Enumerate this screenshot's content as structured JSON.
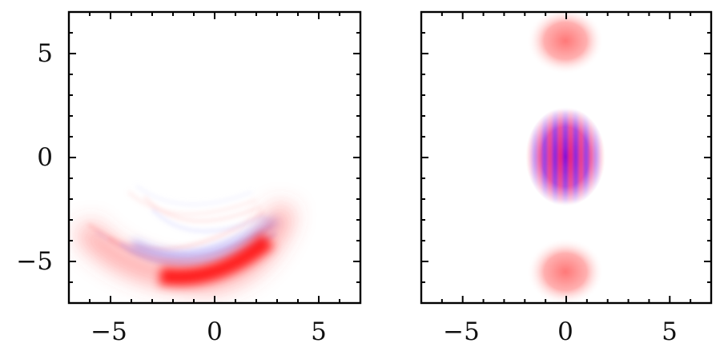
{
  "chart_data": [
    {
      "type": "heatmap",
      "title": "",
      "xlabel": "",
      "ylabel": "",
      "xlim": [
        -7,
        7
      ],
      "ylim": [
        -7,
        7
      ],
      "xticks": [
        -5,
        0,
        5
      ],
      "yticks": [
        -5,
        0,
        5
      ],
      "xtick_labels": [
        "−5",
        "0",
        "5"
      ],
      "ytick_labels": [
        "−5",
        "0",
        "5"
      ],
      "colormap": "bwr",
      "colors": {
        "positive": "#ff0000",
        "negative": "#0000ff",
        "zero": "#ffffff"
      },
      "grid": false,
      "features": [
        {
          "kind": "crescent-main-lobe",
          "center": [
            0,
            -5.5
          ],
          "sign": "positive",
          "peak": 0.9
        },
        {
          "kind": "interference-arcs",
          "center": [
            -1.5,
            -2.5
          ],
          "sign": "alternating",
          "peak": 0.35
        }
      ]
    },
    {
      "type": "heatmap",
      "title": "",
      "xlabel": "",
      "ylabel": "",
      "xlim": [
        -7,
        7
      ],
      "ylim": [
        -7,
        7
      ],
      "xticks": [
        -5,
        0,
        5
      ],
      "yticks": [
        -5,
        0,
        5
      ],
      "xtick_labels": [
        "−5",
        "0",
        "5"
      ],
      "ytick_labels": [],
      "colormap": "bwr",
      "colors": {
        "positive": "#ff0000",
        "negative": "#0000ff",
        "zero": "#ffffff"
      },
      "grid": false,
      "features": [
        {
          "kind": "gaussian",
          "center": [
            0,
            5.6
          ],
          "sign": "positive",
          "peak": 0.5
        },
        {
          "kind": "gaussian",
          "center": [
            0,
            -5.6
          ],
          "sign": "positive",
          "peak": 0.5
        },
        {
          "kind": "fringes",
          "center": [
            0,
            0
          ],
          "sign": "alternating",
          "peak": 1.0
        }
      ]
    }
  ]
}
